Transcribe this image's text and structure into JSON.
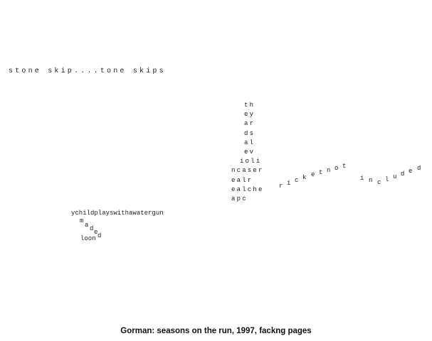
{
  "poem": {
    "line1": "stone skip....tone skips",
    "grid_rows": [
      "th",
      "ey",
      "ar",
      "ds",
      "al",
      "ev",
      "ioli",
      "ncaser",
      "ealr",
      "ealche",
      "apc"
    ],
    "wave_chars": [
      "r",
      "i",
      "c",
      "k",
      "e",
      "t",
      "n",
      "o",
      "t",
      "i",
      "n",
      "c",
      "l",
      "u",
      "d",
      "e",
      "d"
    ],
    "child_line": "ychildplayswithawatergun",
    "drop_chars": [
      "m",
      "a",
      "d",
      "e",
      "d"
    ],
    "loon": "loon"
  },
  "caption": "Gorman: seasons on the run, 1997, fackng pages"
}
